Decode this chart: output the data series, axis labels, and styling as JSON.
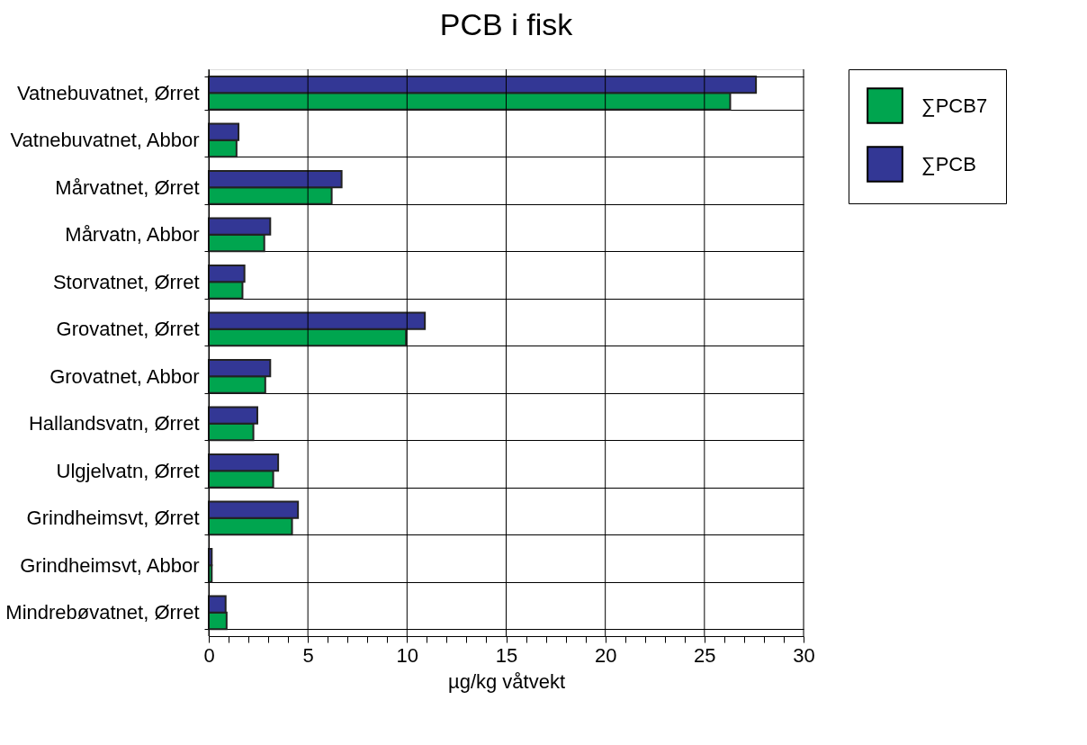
{
  "chart_data": {
    "type": "bar",
    "orientation": "horizontal",
    "title": "PCB i fisk",
    "xlabel": "µg/kg våtvekt",
    "categories": [
      "Vatnebuvatnet, Ørret",
      "Vatnebuvatnet, Abbor",
      "Mårvatnet, Ørret",
      "Mårvatn, Abbor",
      "Storvatnet, Ørret",
      "Grovatnet, Ørret",
      "Grovatnet, Abbor",
      "Hallandsvatn, Ørret",
      "Ulgjelvatn, Ørret",
      "Grindheimsvt, Ørret",
      "Grindheimsvt, Abbor",
      "Mindrebøvatnet, Ørret"
    ],
    "series": [
      {
        "name": "∑PCB7",
        "color": "#00a54f",
        "values": [
          26.3,
          1.4,
          6.2,
          2.8,
          1.7,
          9.95,
          2.85,
          2.25,
          3.25,
          4.2,
          0.15,
          0.9
        ]
      },
      {
        "name": "∑PCB",
        "color": "#333795",
        "values": [
          27.6,
          1.5,
          6.7,
          3.1,
          1.8,
          10.9,
          3.1,
          2.45,
          3.5,
          4.5,
          0.15,
          0.85
        ]
      }
    ],
    "xlim": [
      0,
      30
    ],
    "xticks": [
      0,
      {
        "value": 1,
        "label": null
      },
      {
        "value": 2,
        "label": null
      },
      {
        "value": 3,
        "label": null
      },
      {
        "value": 4,
        "label": null
      },
      5,
      {
        "value": 6,
        "label": null
      },
      {
        "value": 7,
        "label": null
      },
      {
        "value": 8,
        "label": null
      },
      {
        "value": 9,
        "label": null
      },
      10,
      {
        "value": 11,
        "label": null
      },
      {
        "value": 12,
        "label": null
      },
      {
        "value": 13,
        "label": null
      },
      {
        "value": 14,
        "label": null
      },
      15,
      {
        "value": 16,
        "label": null
      },
      {
        "value": 17,
        "label": null
      },
      {
        "value": 18,
        "label": null
      },
      {
        "value": 19,
        "label": null
      },
      20,
      {
        "value": 21,
        "label": null
      },
      {
        "value": 22,
        "label": null
      },
      {
        "value": 23,
        "label": null
      },
      {
        "value": 24,
        "label": null
      },
      25,
      {
        "value": 26,
        "label": null
      },
      {
        "value": 27,
        "label": null
      },
      {
        "value": 28,
        "label": null
      },
      {
        "value": 29,
        "label": null
      },
      30
    ],
    "grid": true,
    "legend": "top right"
  }
}
